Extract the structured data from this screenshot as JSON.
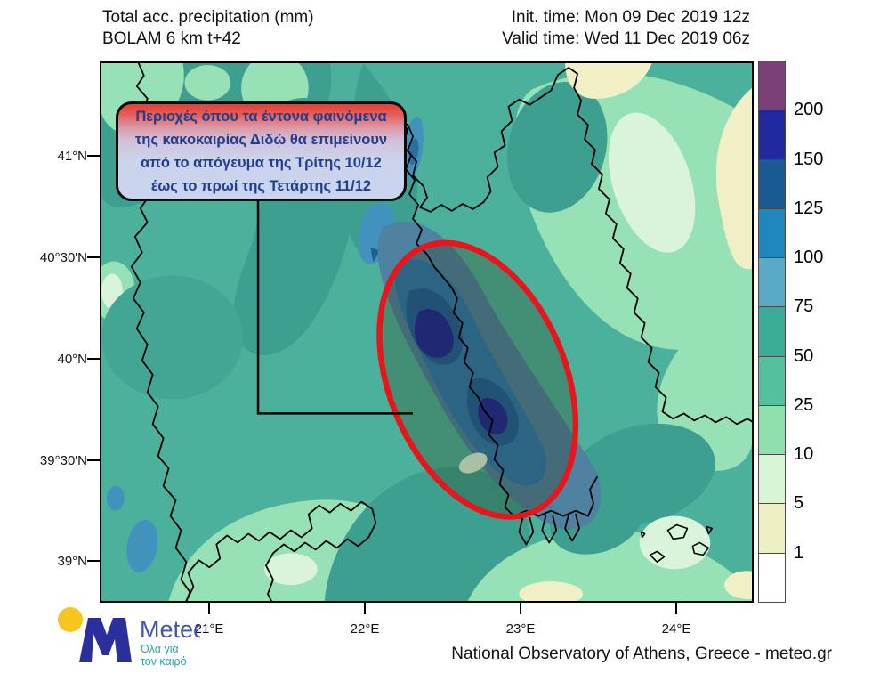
{
  "header": {
    "title_line1": "Total acc. precipitation (mm)",
    "title_line2": "BOLAM 6 km t+42",
    "init_time": "Init. time: Mon 09 Dec 2019 12z",
    "valid_time": "Valid time: Wed 11 Dec 2019 06z"
  },
  "annotation": {
    "line1": "Περιοχές όπου τα έντονα φαινόμενα",
    "line2": "της κακοκαιρίας Διδώ θα επιμείνουν",
    "line3": "από το απόγευμα της Τρίτης 10/12",
    "line4": "έως το πρωί της Τετάρτης 11/12"
  },
  "axes": {
    "lat": [
      "41°N",
      "40°30'N",
      "40°N",
      "39°30'N",
      "39°N"
    ],
    "lon": [
      "21°E",
      "22°E",
      "23°E",
      "24°E"
    ]
  },
  "colorbar": {
    "values": [
      "200",
      "150",
      "125",
      "100",
      "75",
      "50",
      "25",
      "10",
      "5",
      "1"
    ],
    "colors": [
      "#7b4077",
      "#2028a0",
      "#1a5a93",
      "#1f86be",
      "#5aa9c6",
      "#3aab96",
      "#55c09e",
      "#90e0ae",
      "#d8f5d6",
      "#eeefc2",
      "#ffffff"
    ]
  },
  "logo": {
    "brand": "Meteo",
    "tagline_line1": "Όλα για",
    "tagline_line2": "τον καιρό"
  },
  "footer": {
    "attribution": "National Observatory of Athens, Greece - meteo.gr"
  },
  "chart_data": {
    "type": "heatmap",
    "title": "Total acc. precipitation (mm)",
    "model": "BOLAM 6 km t+42",
    "init_time": "Mon 09 Dec 2019 12z",
    "valid_time": "Wed 11 Dec 2019 06z",
    "legend_boundaries_mm": [
      1,
      5,
      10,
      25,
      50,
      75,
      100,
      125,
      150,
      200
    ],
    "legend_colors_low_to_high": [
      "#ffffff",
      "#eeefc2",
      "#d8f5d6",
      "#90e0ae",
      "#55c09e",
      "#3aab96",
      "#5aa9c6",
      "#1f86be",
      "#1a5a93",
      "#2028a0",
      "#7b4077"
    ],
    "lat_ticks": [
      "41°N",
      "40°30'N",
      "40°N",
      "39°30'N",
      "39°N"
    ],
    "lon_ticks": [
      "21°E",
      "22°E",
      "23°E",
      "24°E"
    ],
    "max_band_mm": "150-200",
    "highlight": "red ellipse over eastern Thessaly / Pelion area marking where severe weather of storm Dido persists"
  }
}
